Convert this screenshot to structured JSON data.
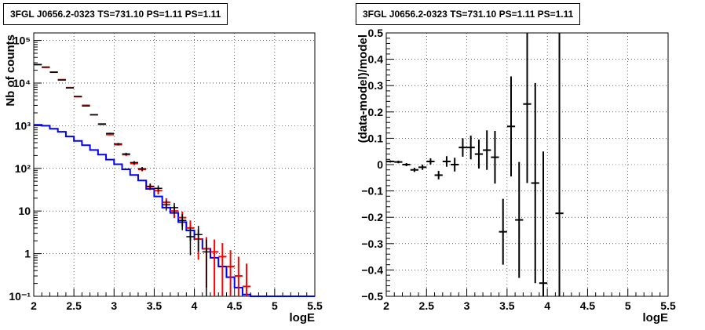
{
  "chart_data": [
    {
      "type": "line",
      "title": "3FGL J0656.2-0323 TS=731.10 PS=1.11 PS=1.11",
      "xlabel": "logE",
      "ylabel": "Nb of counts",
      "xlim": [
        2,
        5.5
      ],
      "ylim": [
        0.1,
        150000
      ],
      "y_scale": "log",
      "grid": true,
      "x_ticks": [
        2,
        2.5,
        3,
        3.5,
        4,
        4.5,
        5,
        5.5
      ],
      "x_tick_labels": [
        "2",
        "2.5",
        "3",
        "3.5",
        "4",
        "4.5",
        "5",
        "5.5"
      ],
      "y_ticks": [
        0.1,
        1,
        10,
        100,
        1000,
        10000,
        100000
      ],
      "y_tick_labels": [
        "10⁻¹",
        "1",
        "10",
        "10²",
        "10³",
        "10⁴",
        "10⁵"
      ],
      "bin_width": 0.1,
      "series": [
        {
          "color": "#0000ff",
          "style": "step",
          "x": [
            2.05,
            2.15,
            2.25,
            2.35,
            2.45,
            2.55,
            2.65,
            2.75,
            2.85,
            2.95,
            3.05,
            3.15,
            3.25,
            3.35,
            3.45,
            3.55,
            3.65,
            3.75,
            3.85,
            3.95,
            4.05,
            4.15,
            4.25,
            4.35,
            4.45,
            4.55,
            4.65,
            4.75,
            4.85,
            4.95,
            5.05,
            5.15,
            5.25,
            5.35,
            5.45
          ],
          "y": [
            1050,
            1000,
            850,
            720,
            560,
            440,
            350,
            270,
            210,
            160,
            125,
            95,
            70,
            52,
            33,
            22,
            12,
            9,
            5.5,
            3.5,
            2.2,
            1.3,
            0.8,
            0.5,
            0.28,
            0.16,
            0.11,
            0.1,
            0.1,
            0.1,
            0.1,
            0.1,
            0.1,
            0.1,
            0.1
          ]
        },
        {
          "color": "#ff0000",
          "style": "hist",
          "x": [
            2.05,
            2.15,
            2.25,
            2.35,
            2.45,
            2.55,
            2.65,
            2.75,
            2.85,
            2.95,
            3.05,
            3.15,
            3.25,
            3.35,
            3.45,
            3.55,
            3.65,
            3.75,
            3.85,
            3.95,
            4.05,
            4.15,
            4.25,
            4.35,
            4.45,
            4.55,
            4.65
          ],
          "y": [
            27000,
            23500,
            18000,
            12000,
            7800,
            4800,
            3000,
            1800,
            1100,
            620,
            360,
            210,
            130,
            95,
            37,
            30,
            16,
            10,
            7,
            4,
            2.2,
            1.3,
            1.1,
            0.85,
            0.5,
            0.3,
            0.17
          ]
        },
        {
          "color": "#000000",
          "style": "points",
          "x": [
            2.05,
            2.15,
            2.25,
            2.35,
            2.45,
            2.55,
            2.65,
            2.75,
            2.85,
            2.95,
            3.05,
            3.15,
            3.25,
            3.35,
            3.45,
            3.55,
            3.65,
            3.75,
            3.85,
            3.95,
            4.05,
            4.15
          ],
          "y": [
            27300,
            23700,
            18000,
            11800,
            7700,
            4850,
            2900,
            1820,
            1080,
            660,
            375,
            218,
            137,
            98,
            38,
            34,
            14,
            12,
            6,
            2.5,
            2.8,
            1.1
          ]
        }
      ]
    },
    {
      "type": "scatter",
      "title": "3FGL J0656.2-0323 TS=731.10 PS=1.11 PS=1.11",
      "xlabel": "logE",
      "ylabel": "(data-model)/model",
      "xlim": [
        2,
        5.5
      ],
      "ylim": [
        -0.5,
        0.5
      ],
      "grid": true,
      "x_ticks": [
        2,
        2.5,
        3,
        3.5,
        4,
        4.5,
        5,
        5.5
      ],
      "x_tick_labels": [
        "2",
        "2.5",
        "3",
        "3.5",
        "4",
        "4.5",
        "5",
        "5.5"
      ],
      "y_ticks": [
        -0.5,
        -0.4,
        -0.3,
        -0.2,
        -0.1,
        0,
        0.1,
        0.2,
        0.3,
        0.4,
        0.5
      ],
      "y_tick_labels": [
        "−0.5",
        "−0.4",
        "−0.3",
        "−0.2",
        "−0.1",
        "0",
        "0.1",
        "0.2",
        "0.3",
        "0.4",
        "0.5"
      ],
      "bin_width": 0.1,
      "series": [
        {
          "color": "#000000",
          "x": [
            2.05,
            2.15,
            2.25,
            2.35,
            2.45,
            2.55,
            2.65,
            2.75,
            2.85,
            2.95,
            3.05,
            3.15,
            3.25,
            3.35,
            3.45,
            3.55,
            3.65,
            3.75,
            3.85,
            3.95,
            4.15
          ],
          "y": [
            0.012,
            0.01,
            0.0,
            -0.02,
            -0.01,
            0.012,
            -0.04,
            0.012,
            0.0,
            0.065,
            0.065,
            0.04,
            0.055,
            0.028,
            -0.255,
            0.145,
            -0.21,
            0.23,
            -0.07,
            -0.45,
            -0.185
          ],
          "err": [
            0.004,
            0.005,
            0.006,
            0.008,
            0.01,
            0.012,
            0.016,
            0.02,
            0.026,
            0.035,
            0.045,
            0.055,
            0.075,
            0.1,
            0.125,
            0.19,
            0.22,
            0.3,
            0.38,
            0.5,
            0.7
          ]
        }
      ]
    }
  ]
}
